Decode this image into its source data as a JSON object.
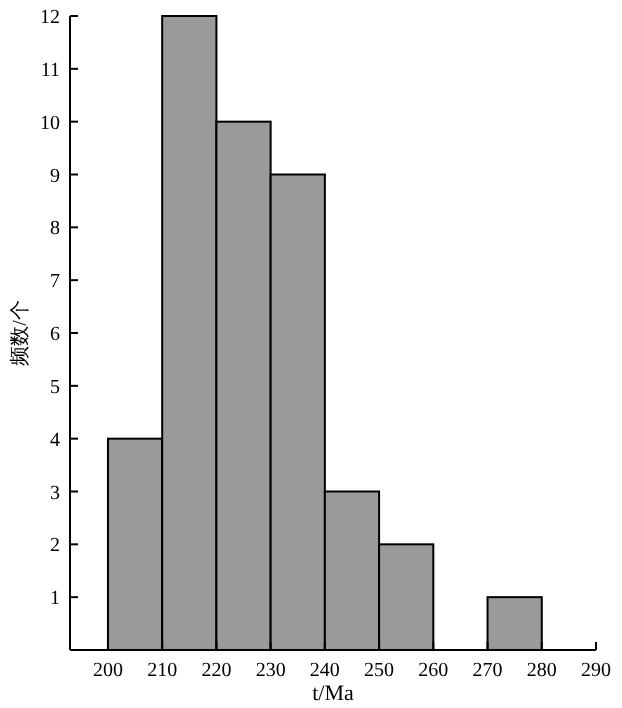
{
  "chart_data": {
    "type": "histogram",
    "xlabel": "t/Ma",
    "ylabel": "频数/个",
    "bins": [
      200,
      210,
      220,
      230,
      240,
      250,
      260,
      270,
      280
    ],
    "values": [
      4,
      12,
      10,
      9,
      3,
      2,
      0,
      1
    ],
    "color": "#9a9a9a",
    "xlim": [
      193,
      290
    ],
    "xticks": [
      200,
      210,
      220,
      230,
      240,
      250,
      260,
      270,
      280,
      290
    ],
    "ylim": [
      0,
      12
    ],
    "yticks": [
      1,
      2,
      3,
      4,
      5,
      6,
      7,
      8,
      9,
      10,
      11,
      12
    ]
  }
}
